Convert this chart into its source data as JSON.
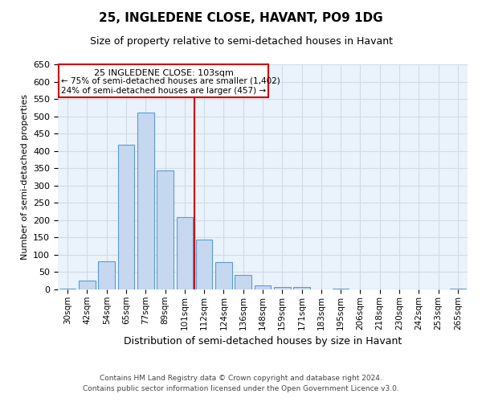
{
  "title": "25, INGLEDENE CLOSE, HAVANT, PO9 1DG",
  "subtitle": "Size of property relative to semi-detached houses in Havant",
  "xlabel": "Distribution of semi-detached houses by size in Havant",
  "ylabel": "Number of semi-detached properties",
  "footer_line1": "Contains HM Land Registry data © Crown copyright and database right 2024.",
  "footer_line2": "Contains public sector information licensed under the Open Government Licence v3.0.",
  "bin_labels": [
    "30sqm",
    "42sqm",
    "54sqm",
    "65sqm",
    "77sqm",
    "89sqm",
    "101sqm",
    "112sqm",
    "124sqm",
    "136sqm",
    "148sqm",
    "159sqm",
    "171sqm",
    "183sqm",
    "195sqm",
    "206sqm",
    "218sqm",
    "230sqm",
    "242sqm",
    "253sqm",
    "265sqm"
  ],
  "bar_values": [
    3,
    25,
    82,
    418,
    510,
    343,
    208,
    143,
    80,
    42,
    12,
    6,
    8,
    0,
    3,
    0,
    0,
    1,
    0,
    0,
    2
  ],
  "bar_color": "#c5d8f0",
  "bar_edge_color": "#5b9bd5",
  "vline_x": 6.5,
  "vline_color": "#cc0000",
  "annotation_title": "25 INGLEDENE CLOSE: 103sqm",
  "annotation_line1": "← 75% of semi-detached houses are smaller (1,402)",
  "annotation_line2": "24% of semi-detached houses are larger (457) →",
  "annotation_box_color": "#cc0000",
  "ylim": [
    0,
    650
  ],
  "yticks": [
    0,
    50,
    100,
    150,
    200,
    250,
    300,
    350,
    400,
    450,
    500,
    550,
    600,
    650
  ],
  "grid_color": "#d0dce8",
  "background_color": "#eaf2fb"
}
